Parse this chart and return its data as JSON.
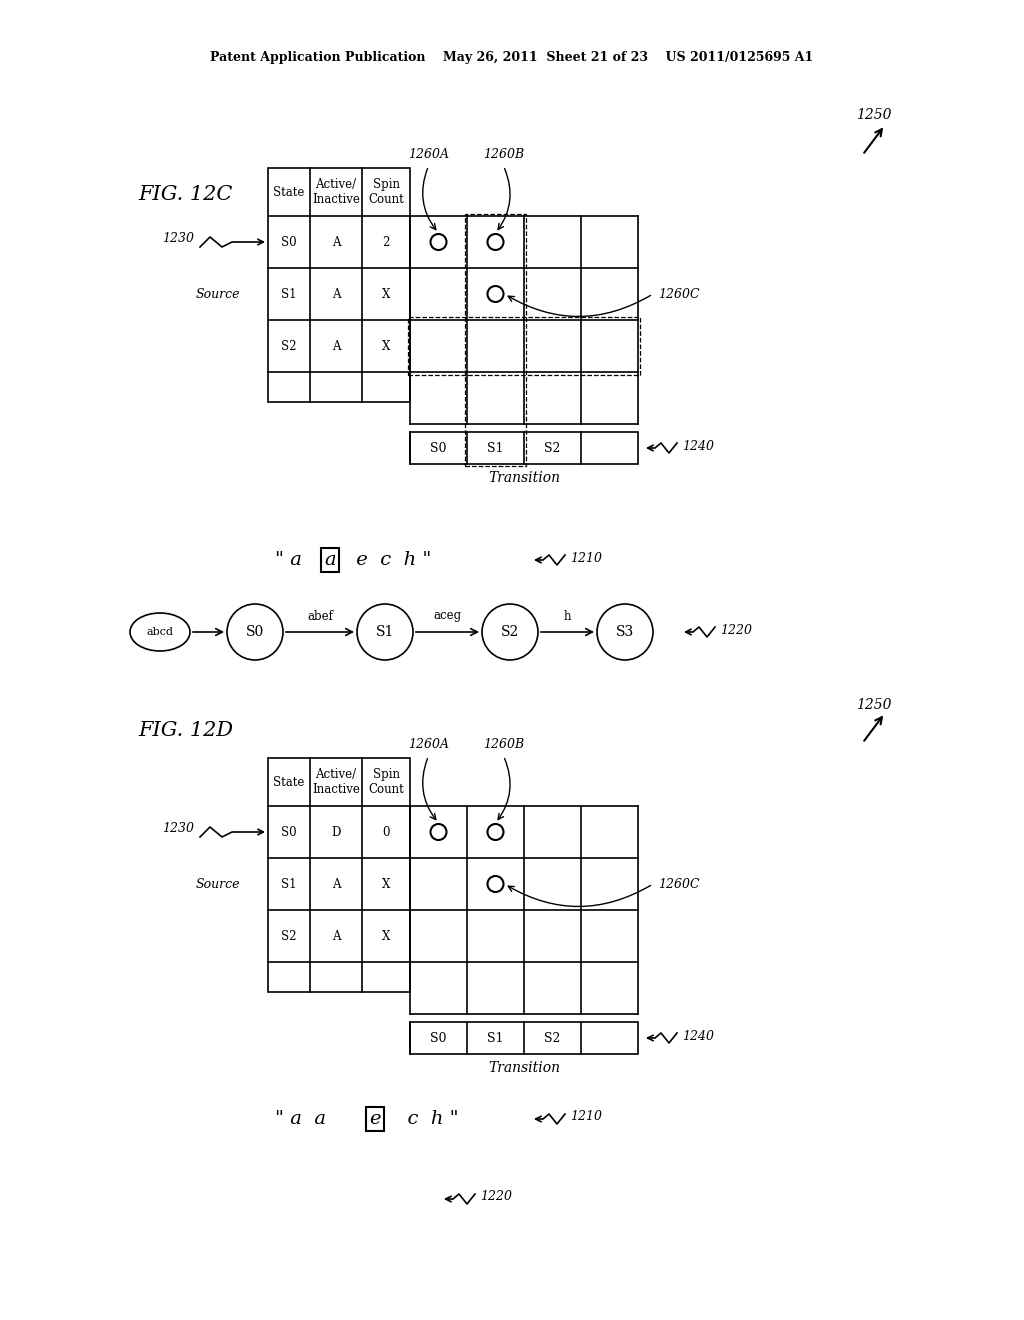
{
  "bg_color": "#ffffff",
  "header_text": "Patent Application Publication    May 26, 2011  Sheet 21 of 23    US 2011/0125695 A1",
  "fig12c_label": "FIG. 12C",
  "fig12d_label": "FIG. 12D",
  "cells_12c": [
    [
      "State",
      "Active/\nInactive",
      "Spin\nCount"
    ],
    [
      "S0",
      "A",
      "2"
    ],
    [
      "S1",
      "A",
      "X"
    ],
    [
      "S2",
      "A",
      "X"
    ],
    [
      "",
      "",
      ""
    ]
  ],
  "cells_12d": [
    [
      "State",
      "Active/\nInactive",
      "Spin\nCount"
    ],
    [
      "S0",
      "D",
      "0"
    ],
    [
      "S1",
      "A",
      "X"
    ],
    [
      "S2",
      "A",
      "X"
    ],
    [
      "",
      "",
      ""
    ]
  ],
  "nfa_abcd": "abcd",
  "nfa_states": [
    "S0",
    "S1",
    "S2",
    "S3"
  ],
  "nfa_labels": [
    "abef",
    "aceg",
    "h"
  ],
  "label_1250": "1250",
  "label_1240": "1240",
  "label_1230": "1230",
  "label_1260A": "1260A",
  "label_1260B": "1260B",
  "label_1260C": "1260C",
  "label_1210": "1210",
  "label_1220": "1220",
  "transition_label": "Transition",
  "source_label": "Source"
}
